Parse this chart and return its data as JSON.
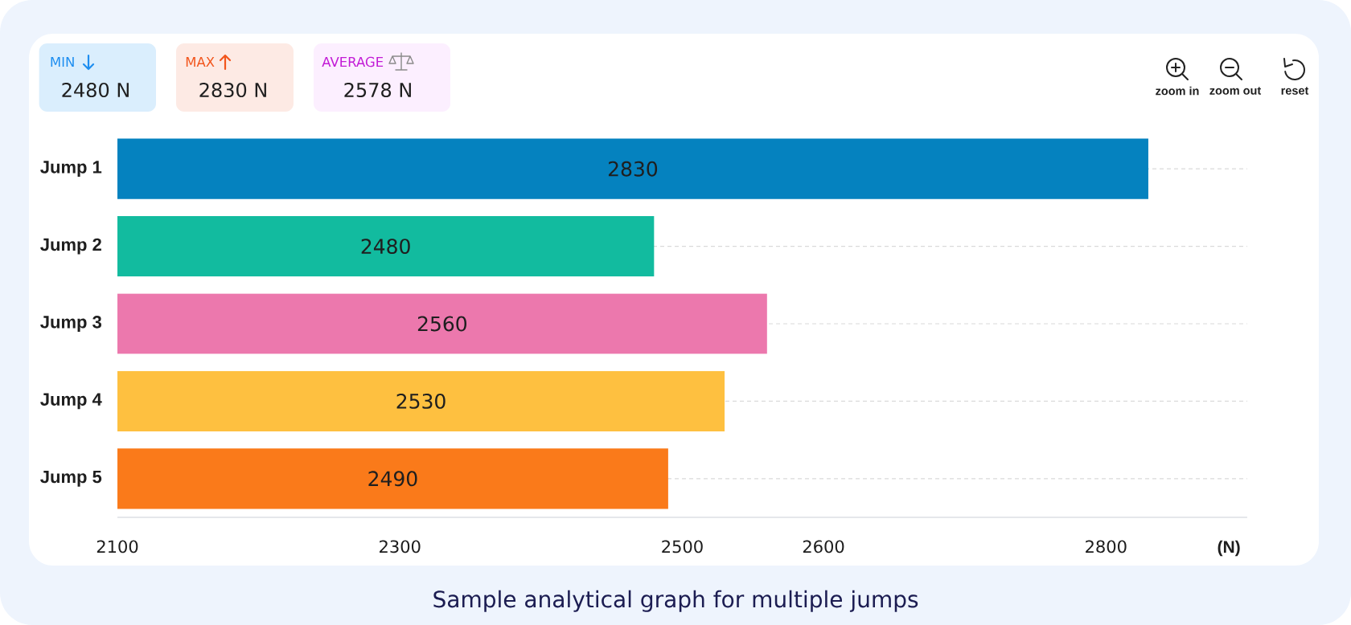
{
  "chart_data": {
    "type": "bar",
    "orientation": "horizontal",
    "categories": [
      "Jump 1",
      "Jump 2",
      "Jump 3",
      "Jump 4",
      "Jump 5"
    ],
    "values": [
      2830,
      2480,
      2560,
      2530,
      2490
    ],
    "colors": [
      "#0582bf",
      "#12bb9f",
      "#ec78ad",
      "#fec040",
      "#fa7a1a"
    ],
    "data_labels": true,
    "xlabel": "(N)",
    "xlim": [
      2100,
      2900
    ],
    "xticks": [
      2100,
      2300,
      2500,
      2600,
      2800
    ],
    "grid": "y",
    "annotations": [
      "MIN",
      "2480 N",
      "MAX",
      "2830 N",
      "AVERAGE",
      "2578 N",
      "zoom in",
      "zoom out",
      "reset",
      "Sample analytical graph for multiple jumps"
    ]
  }
}
